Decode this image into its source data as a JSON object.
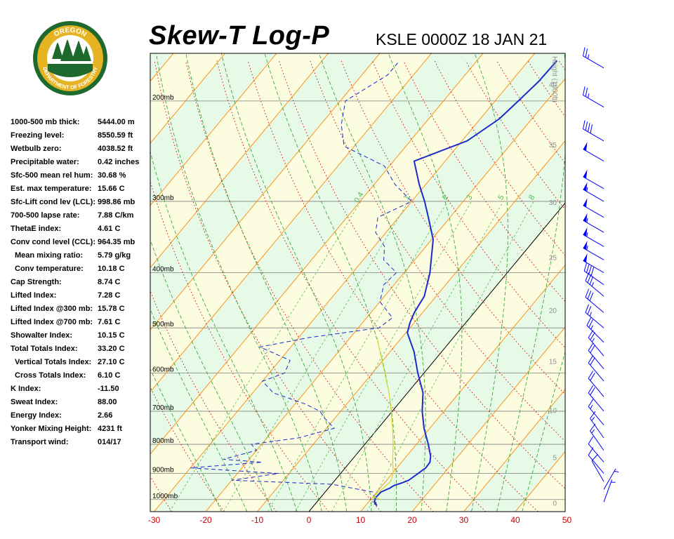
{
  "title": "Skew-T Log-P",
  "subtitle": "KSLE 0000Z 18 JAN 21",
  "logo": {
    "text_top": "OREGON",
    "text_bottom": "DEPARTMENT OF FORESTRY",
    "colors": {
      "green": "#1e6a2e",
      "gold": "#e6b422"
    }
  },
  "indices": [
    {
      "label": "1000-500 mb thick:",
      "value": "5444.00 m",
      "indent": false
    },
    {
      "label": "Freezing level:",
      "value": "8550.59 ft",
      "indent": false
    },
    {
      "label": "Wetbulb zero:",
      "value": "4038.52 ft",
      "indent": false
    },
    {
      "label": "Precipitable water:",
      "value": "0.42 inches",
      "indent": false
    },
    {
      "label": "Sfc-500 mean rel hum:",
      "value": "30.68 %",
      "indent": false
    },
    {
      "label": "Est. max temperature:",
      "value": "15.66 C",
      "indent": false
    },
    {
      "label": "Sfc-Lift cond lev (LCL):",
      "value": "998.86 mb",
      "indent": false
    },
    {
      "label": "700-500 lapse rate:",
      "value": "7.88 C/km",
      "indent": false
    },
    {
      "label": "ThetaE index:",
      "value": "4.61 C",
      "indent": false
    },
    {
      "label": "Conv cond level (CCL):",
      "value": "964.35 mb",
      "indent": false
    },
    {
      "label": "Mean mixing ratio:",
      "value": "5.79 g/kg",
      "indent": true
    },
    {
      "label": "Conv temperature:",
      "value": "10.18 C",
      "indent": true
    },
    {
      "label": "Cap Strength:",
      "value": "8.74 C",
      "indent": false
    },
    {
      "label": "Lifted Index:",
      "value": "7.28 C",
      "indent": false
    },
    {
      "label": "Lifted Index @300 mb:",
      "value": "15.78 C",
      "indent": false
    },
    {
      "label": "Lifted Index @700 mb:",
      "value": "7.61 C",
      "indent": false
    },
    {
      "label": "Showalter Index:",
      "value": "10.15 C",
      "indent": false
    },
    {
      "label": "Total Totals Index:",
      "value": "33.20 C",
      "indent": false
    },
    {
      "label": "Vertical Totals Index:",
      "value": "27.10 C",
      "indent": true
    },
    {
      "label": "Cross Totals Index:",
      "value": "6.10 C",
      "indent": true
    },
    {
      "label": "K Index:",
      "value": "-11.50",
      "indent": false
    },
    {
      "label": "Sweat Index:",
      "value": "88.00",
      "indent": false
    },
    {
      "label": "Energy Index:",
      "value": "2.66",
      "indent": false
    },
    {
      "label": "Yonker Mixing Height:",
      "value": "4231 ft",
      "indent": false
    },
    {
      "label": "Transport wind:",
      "value": "014/17",
      "indent": false
    }
  ],
  "chart_data": {
    "type": "line",
    "diagram": "skew-t log-p",
    "pressure_levels_mb": [
      1000,
      900,
      800,
      700,
      600,
      500,
      400,
      300,
      200
    ],
    "pressure_labels": [
      "1000mb",
      "900mb",
      "800mb",
      "700mb",
      "600mb",
      "500mb",
      "400mb",
      "300mb",
      "200mb"
    ],
    "pressure_range_mb": [
      1050,
      165
    ],
    "temperature_ticks_c": [
      -30,
      -20,
      -10,
      0,
      10,
      20,
      30,
      40,
      50
    ],
    "temperature_range_at_bottom_c": [
      -33,
      52
    ],
    "height_axis_label": "Height (1000ft)",
    "height_ticks_kft": [
      0,
      5,
      10,
      15,
      20,
      25,
      30,
      35,
      40,
      45,
      50
    ],
    "mixing_ratio_labels": [
      "0.4",
      "1",
      "2",
      "3",
      "5",
      "8"
    ],
    "mixing_ratio_values_gkg": [
      0.4,
      1,
      2,
      3,
      5,
      8
    ],
    "series": [
      {
        "role": "temperature",
        "color": "#1a2acb",
        "style": "solid",
        "points": [
          [
            1025,
            12.2
          ],
          [
            1010,
            11.1
          ],
          [
            990,
            10.7
          ],
          [
            970,
            10.8
          ],
          [
            955,
            11.9
          ],
          [
            945,
            12.3
          ],
          [
            935,
            13.4
          ],
          [
            925,
            14.3
          ],
          [
            880,
            15.6
          ],
          [
            860,
            15.5
          ],
          [
            840,
            14.7
          ],
          [
            800,
            12.3
          ],
          [
            750,
            8.9
          ],
          [
            700,
            5.8
          ],
          [
            650,
            3.0
          ],
          [
            600,
            -1.2
          ],
          [
            550,
            -5.4
          ],
          [
            510,
            -9.7
          ],
          [
            490,
            -10.8
          ],
          [
            470,
            -11.6
          ],
          [
            440,
            -12.3
          ],
          [
            400,
            -15.0
          ],
          [
            350,
            -19.7
          ],
          [
            320,
            -24.2
          ],
          [
            300,
            -27.5
          ],
          [
            280,
            -31.3
          ],
          [
            255,
            -36.0
          ],
          [
            235,
            -29.0
          ],
          [
            215,
            -26.3
          ],
          [
            200,
            -25.5
          ],
          [
            185,
            -24.7
          ],
          [
            170,
            -24.5
          ]
        ]
      },
      {
        "role": "dewpoint",
        "color": "#1a2acb",
        "style": "dashed",
        "points": [
          [
            1025,
            12.2
          ],
          [
            970,
            9.2
          ],
          [
            940,
            0.0
          ],
          [
            925,
            -20.0
          ],
          [
            900,
            -12.0
          ],
          [
            880,
            -30.0
          ],
          [
            860,
            -17.0
          ],
          [
            850,
            -25.0
          ],
          [
            820,
            -20.0
          ],
          [
            800,
            -22.0
          ],
          [
            780,
            -14.0
          ],
          [
            750,
            -8.5
          ],
          [
            720,
            -12.0
          ],
          [
            700,
            -14.0
          ],
          [
            680,
            -18.0
          ],
          [
            650,
            -26.0
          ],
          [
            620,
            -30.0
          ],
          [
            600,
            -27.0
          ],
          [
            570,
            -28.0
          ],
          [
            540,
            -36.0
          ],
          [
            520,
            -28.0
          ],
          [
            500,
            -16.0
          ],
          [
            480,
            -15.0
          ],
          [
            450,
            -20.0
          ],
          [
            420,
            -22.0
          ],
          [
            400,
            -21.5
          ],
          [
            380,
            -26.0
          ],
          [
            360,
            -28.0
          ],
          [
            340,
            -32.0
          ],
          [
            320,
            -34.0
          ],
          [
            300,
            -30.0
          ],
          [
            280,
            -36.0
          ],
          [
            260,
            -41.0
          ],
          [
            240,
            -52.0
          ],
          [
            220,
            -56.0
          ],
          [
            200,
            -59.0
          ],
          [
            180,
            -55.0
          ],
          [
            170,
            -55.0
          ]
        ]
      },
      {
        "role": "parcel",
        "color": "#d8d830",
        "style": "solid",
        "points": [
          [
            1000,
            12.0
          ],
          [
            990,
            10.0
          ],
          [
            970,
            10.4
          ],
          [
            930,
            11.0
          ],
          [
            900,
            10.2
          ],
          [
            850,
            7.8
          ],
          [
            800,
            5.5
          ],
          [
            750,
            2.8
          ],
          [
            700,
            -0.2
          ],
          [
            650,
            -3.6
          ],
          [
            600,
            -7.6
          ],
          [
            550,
            -12.0
          ],
          [
            520,
            -14.8
          ]
        ]
      }
    ],
    "winds": [
      {
        "p": 1010,
        "dir": 20,
        "spd": 5
      },
      {
        "p": 960,
        "dir": 30,
        "spd": 5
      },
      {
        "p": 930,
        "dir": 330,
        "spd": 10
      },
      {
        "p": 900,
        "dir": 320,
        "spd": 10
      },
      {
        "p": 860,
        "dir": 320,
        "spd": 10
      },
      {
        "p": 820,
        "dir": 325,
        "spd": 15
      },
      {
        "p": 780,
        "dir": 325,
        "spd": 15
      },
      {
        "p": 740,
        "dir": 320,
        "spd": 15
      },
      {
        "p": 700,
        "dir": 320,
        "spd": 20
      },
      {
        "p": 660,
        "dir": 320,
        "spd": 20
      },
      {
        "p": 620,
        "dir": 320,
        "spd": 20
      },
      {
        "p": 590,
        "dir": 320,
        "spd": 20
      },
      {
        "p": 560,
        "dir": 320,
        "spd": 25
      },
      {
        "p": 530,
        "dir": 315,
        "spd": 25
      },
      {
        "p": 500,
        "dir": 310,
        "spd": 25
      },
      {
        "p": 470,
        "dir": 310,
        "spd": 30
      },
      {
        "p": 440,
        "dir": 310,
        "spd": 35
      },
      {
        "p": 420,
        "dir": 305,
        "spd": 40
      },
      {
        "p": 400,
        "dir": 300,
        "spd": 50
      },
      {
        "p": 380,
        "dir": 300,
        "spd": 55
      },
      {
        "p": 360,
        "dir": 300,
        "spd": 55
      },
      {
        "p": 340,
        "dir": 300,
        "spd": 55
      },
      {
        "p": 320,
        "dir": 300,
        "spd": 50
      },
      {
        "p": 300,
        "dir": 300,
        "spd": 55
      },
      {
        "p": 285,
        "dir": 300,
        "spd": 50
      },
      {
        "p": 255,
        "dir": 300,
        "spd": 50
      },
      {
        "p": 235,
        "dir": 300,
        "spd": 40
      },
      {
        "p": 205,
        "dir": 300,
        "spd": 25
      },
      {
        "p": 175,
        "dir": 300,
        "spd": 25
      }
    ],
    "grid": true,
    "colors": {
      "isotherm": "#ff8800",
      "dry_adiabat": "#cc0000",
      "moist_adiabat": "#2a9d2a",
      "mixing_ratio": "#2a9d2a",
      "isobar": "#808080",
      "freezing_line": "#000000",
      "band_light": "#fcfce0",
      "band_green": "#e7fae7",
      "wind_barb": "#0000ff",
      "height_label": "#909090"
    }
  }
}
